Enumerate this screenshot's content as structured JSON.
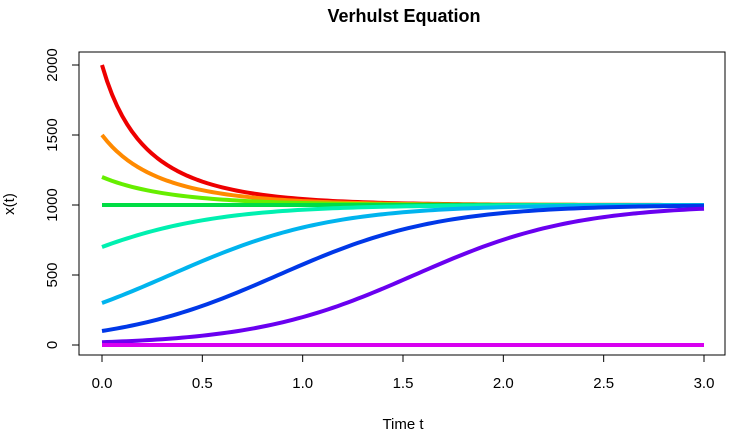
{
  "chart_data": {
    "type": "line",
    "title": "Verhulst Equation",
    "xlabel": "Time t",
    "ylabel": "x(t)",
    "xlim": [
      0,
      3
    ],
    "ylim": [
      0,
      2000
    ],
    "xticks": [
      "0.0",
      "0.5",
      "1.0",
      "1.5",
      "2.0",
      "2.5",
      "3.0"
    ],
    "yticks": [
      "0",
      "500",
      "1000",
      "1500",
      "2000"
    ],
    "grid": false,
    "legend": "none",
    "model": {
      "carrying_capacity": 1000,
      "growth_rate": 2.5
    },
    "series": [
      {
        "x0": 2000,
        "color": "#ee0000"
      },
      {
        "x0": 1500,
        "color": "#ff8a00"
      },
      {
        "x0": 1200,
        "color": "#66ee00"
      },
      {
        "x0": 1000,
        "color": "#00dd44"
      },
      {
        "x0": 700,
        "color": "#00f0b0"
      },
      {
        "x0": 300,
        "color": "#00b4ee"
      },
      {
        "x0": 100,
        "color": "#0038e8"
      },
      {
        "x0": 20,
        "color": "#6a00f0"
      },
      {
        "x0": 0,
        "color": "#d800f0"
      }
    ]
  }
}
